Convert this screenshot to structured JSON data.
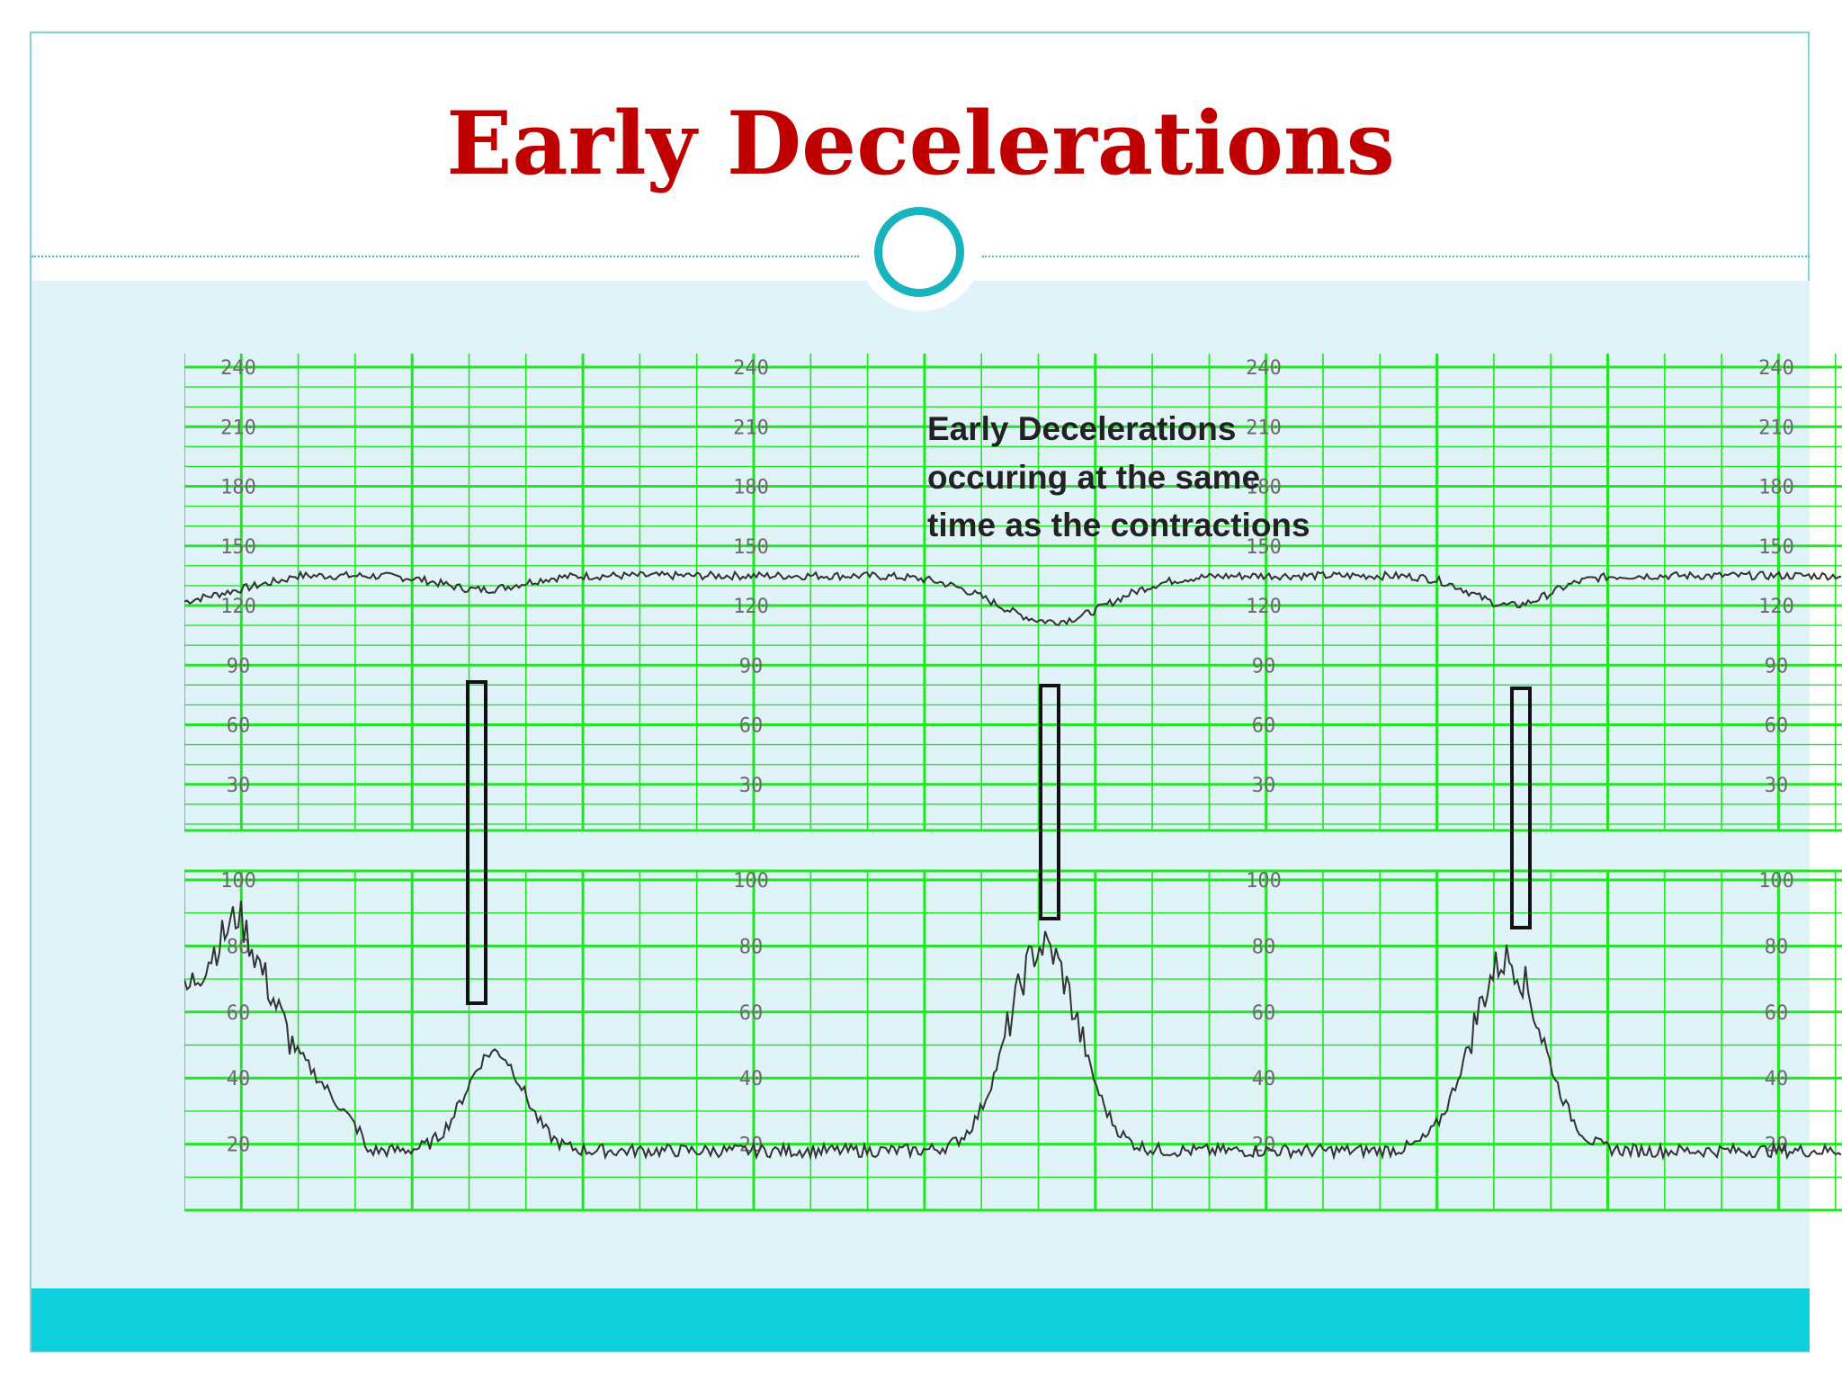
{
  "slide": {
    "title": "Early Decelerations"
  },
  "colors": {
    "title": "#c00000",
    "accent": "#17b3bf",
    "footer": "#0dd0dc",
    "content_background": "#dff3f9",
    "grid": "#22e622",
    "trace": "#333333"
  },
  "tracing": {
    "annotation_lines": [
      "Early Decelerations",
      "occuring at the same",
      "time as the contractions"
    ],
    "fhr_scale_labels": [
      "240",
      "210",
      "180",
      "150",
      "120",
      "90",
      "60",
      "30"
    ],
    "uc_scale_labels": [
      "100",
      "80",
      "60",
      "40",
      "20"
    ],
    "scale_repeats": 4,
    "decelerations_marked": 3,
    "fhr_baseline_bpm": 135,
    "fhr_nadir_bpm": [
      128,
      112,
      120
    ],
    "contraction_peaks": [
      48,
      80,
      76
    ]
  }
}
